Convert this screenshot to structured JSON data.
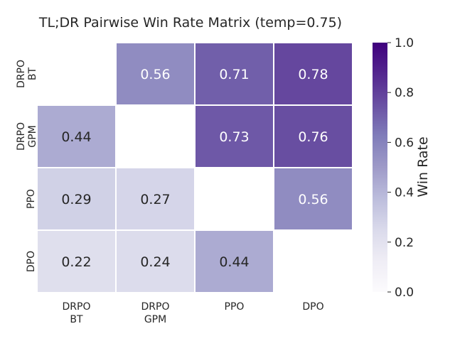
{
  "chart_data": {
    "type": "heatmap",
    "title": "TL;DR Pairwise Win Rate Matrix (temp=0.75)",
    "row_labels": [
      [
        "DRPO",
        "BT"
      ],
      [
        "DRPO",
        "GPM"
      ],
      [
        "PPO"
      ],
      [
        "DPO"
      ]
    ],
    "col_labels": [
      [
        "DRPO",
        "BT"
      ],
      [
        "DRPO",
        "GPM"
      ],
      [
        "PPO"
      ],
      [
        "DPO"
      ]
    ],
    "values": [
      [
        null,
        0.56,
        0.71,
        0.78
      ],
      [
        0.44,
        null,
        0.73,
        0.76
      ],
      [
        0.29,
        0.27,
        null,
        0.56
      ],
      [
        0.22,
        0.24,
        0.44,
        null
      ]
    ],
    "colorbar": {
      "label": "Win Rate",
      "vmin": 0.0,
      "vmax": 1.0,
      "ticks": [
        "0.0",
        "0.2",
        "0.4",
        "0.6",
        "0.8",
        "1.0"
      ]
    },
    "colormap": "Purples",
    "colors": {
      "low": "#fcfbfd",
      "mid": "#9e9ac8",
      "high": "#3f007d"
    }
  }
}
